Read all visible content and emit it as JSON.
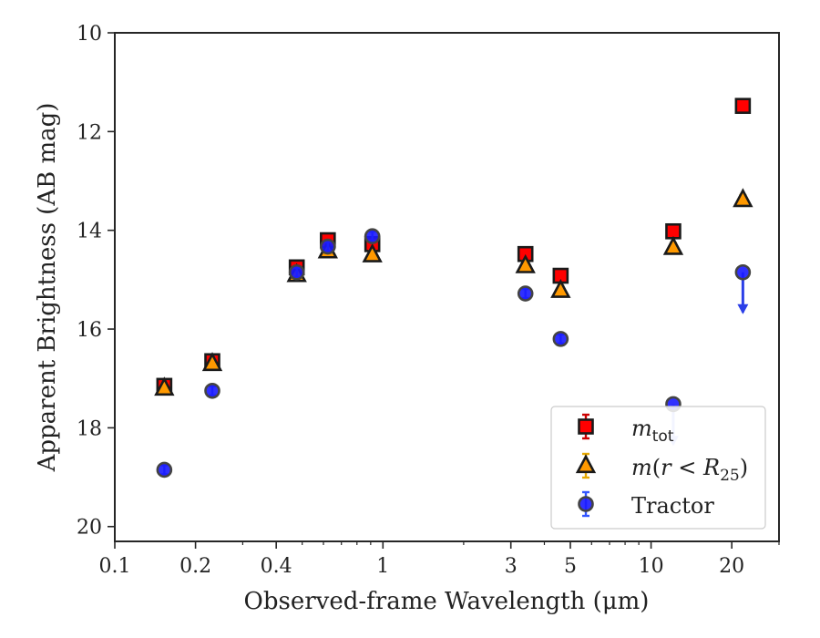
{
  "chart_data": {
    "type": "scatter",
    "xlabel": "Observed-frame Wavelength (μm)",
    "ylabel": "Apparent Brightness (AB mag)",
    "xscale": "log",
    "xlim": [
      0.1,
      30
    ],
    "ylim": [
      20.3,
      10
    ],
    "y_inverted": true,
    "x_ticks": [
      {
        "value": 0.1,
        "label": "0.1"
      },
      {
        "value": 0.2,
        "label": "0.2"
      },
      {
        "value": 0.4,
        "label": "0.4"
      },
      {
        "value": 1,
        "label": "1"
      },
      {
        "value": 3,
        "label": "3"
      },
      {
        "value": 5,
        "label": "5"
      },
      {
        "value": 10,
        "label": "10"
      },
      {
        "value": 20,
        "label": "20"
      }
    ],
    "y_ticks": [
      {
        "value": 10,
        "label": "10"
      },
      {
        "value": 12,
        "label": "12"
      },
      {
        "value": 14,
        "label": "14"
      },
      {
        "value": 16,
        "label": "16"
      },
      {
        "value": 18,
        "label": "18"
      },
      {
        "value": 20,
        "label": "20"
      }
    ],
    "grid": false,
    "legend_position": "lower-right",
    "series": [
      {
        "name": "m_tot",
        "legend_label": "mtot",
        "marker": "square",
        "color": "#ff0000",
        "edge_color": "#1a1a1a",
        "errorbar_color": "#cc0000",
        "x": [
          0.153,
          0.231,
          0.477,
          0.623,
          0.913,
          3.4,
          4.6,
          12.1,
          22.0
        ],
        "y": [
          17.15,
          16.65,
          14.75,
          14.2,
          14.28,
          14.48,
          14.92,
          14.02,
          11.48
        ]
      },
      {
        "name": "m(r < R25)",
        "legend_label": "m(r<R25)",
        "marker": "triangle",
        "color": "#ff9900",
        "edge_color": "#1a1a1a",
        "errorbar_color": "#e6a800",
        "x": [
          0.153,
          0.231,
          0.477,
          0.623,
          0.913,
          3.4,
          4.6,
          12.1,
          22.0
        ],
        "y": [
          17.2,
          16.7,
          14.9,
          14.42,
          14.5,
          14.72,
          15.22,
          14.35,
          13.38
        ]
      },
      {
        "name": "Tractor",
        "legend_label": "Tractor",
        "marker": "circle",
        "color": "#1a1aff",
        "edge_color": "#444444",
        "errorbar_color": "#3355ff",
        "x": [
          0.153,
          0.231,
          0.477,
          0.623,
          0.913,
          3.4,
          4.6,
          12.1,
          22.0
        ],
        "y": [
          18.85,
          17.25,
          14.85,
          14.33,
          14.12,
          15.28,
          16.2,
          17.52,
          14.85
        ],
        "upper_limit": [
          false,
          false,
          false,
          false,
          false,
          false,
          false,
          true,
          true
        ]
      }
    ]
  }
}
